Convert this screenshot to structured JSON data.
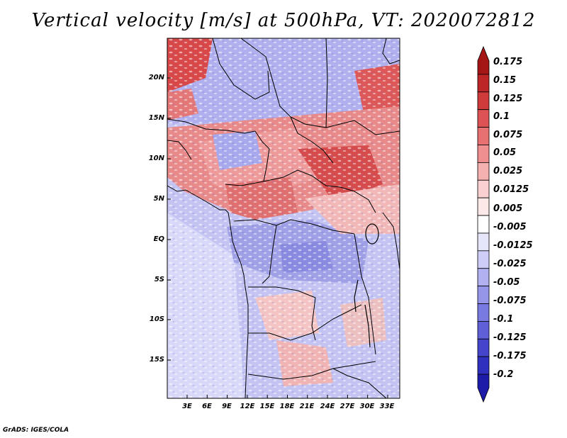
{
  "title": "Vertical velocity [m/s] at 500hPa, VT: 2020072812",
  "footer": "GrADS: IGES/COLA",
  "map": {
    "lat_ticks": [
      "20N",
      "15N",
      "10N",
      "5N",
      "EQ",
      "5S",
      "10S",
      "15S"
    ],
    "lon_ticks": [
      "3E",
      "6E",
      "9E",
      "12E",
      "15E",
      "18E",
      "21E",
      "24E",
      "27E",
      "30E",
      "33E"
    ],
    "colorbar": {
      "labels": [
        "0.175",
        "0.15",
        "0.125",
        "0.1",
        "0.075",
        "0.05",
        "0.025",
        "0.0125",
        "0.005",
        "-0.005",
        "-0.0125",
        "-0.025",
        "-0.05",
        "-0.075",
        "-0.1",
        "-0.125",
        "-0.175",
        "-0.2"
      ],
      "colors": [
        "#a51616",
        "#bd2626",
        "#cf3a3a",
        "#dd5252",
        "#e77070",
        "#ef8f8f",
        "#f5b0b0",
        "#fad0d0",
        "#fde8e8",
        "#ffffff",
        "#e6e6fb",
        "#cdcdf7",
        "#b1b1f1",
        "#9595ea",
        "#7979e2",
        "#5f5fd8",
        "#4545cc",
        "#3030be",
        "#1c1ca8"
      ]
    }
  }
}
